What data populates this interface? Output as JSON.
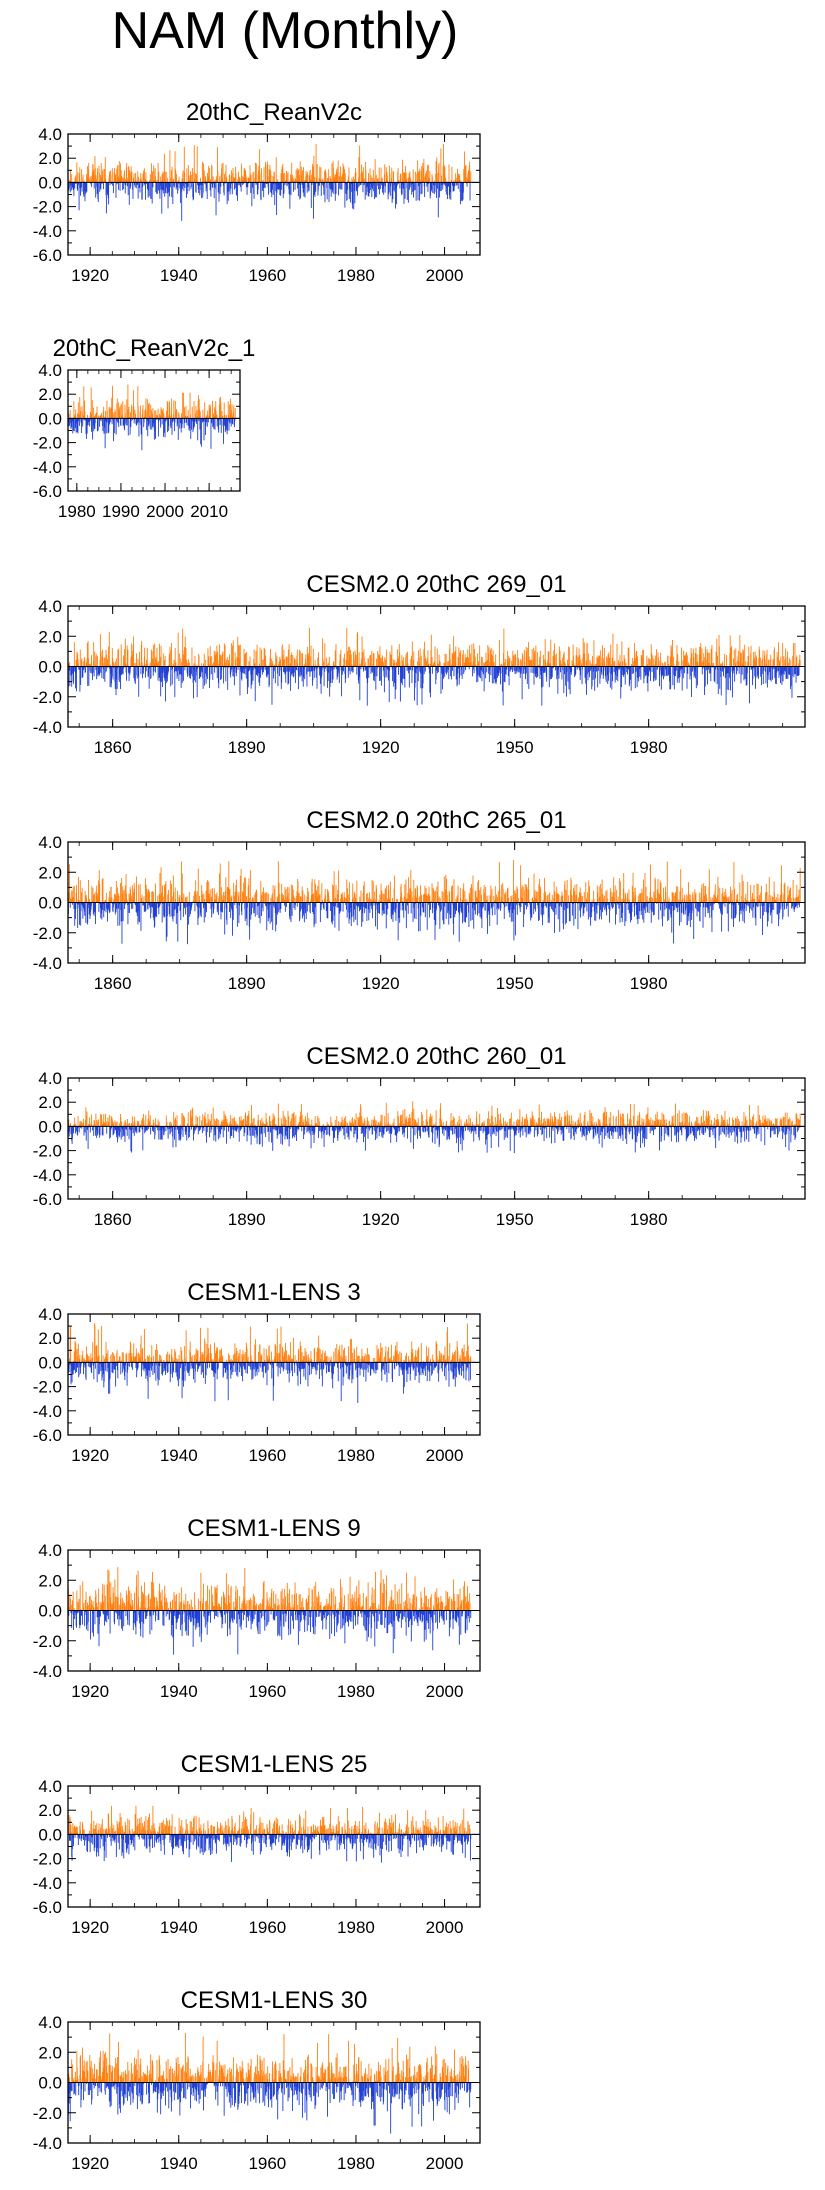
{
  "title": "NAM (Monthly)",
  "colors": {
    "positive": "#ff7f0e",
    "negative": "#1f3fd6",
    "background": "#ffffff"
  },
  "chart_data": [
    {
      "type": "bar",
      "title": "20thC_ReanV2c",
      "xlim": [
        1915,
        2008
      ],
      "ylim": [
        -6.0,
        4.0
      ],
      "x_ticks": [
        1920,
        1940,
        1960,
        1980,
        2000
      ],
      "y_ticks": [
        "4.0",
        "2.0",
        "0.0",
        "-2.0",
        "-4.0",
        "-6.0"
      ],
      "x_range": [
        1915,
        2006
      ],
      "amplitude": 1.2,
      "peak": 3.2,
      "seed": 11
    },
    {
      "type": "bar",
      "title": "20thC_ReanV2c_1",
      "xlim": [
        1978,
        2017
      ],
      "ylim": [
        -6.0,
        4.0
      ],
      "x_ticks": [
        1980,
        1990,
        2000,
        2010
      ],
      "y_ticks": [
        "4.0",
        "2.0",
        "0.0",
        "-2.0",
        "-4.0",
        "-6.0"
      ],
      "x_range": [
        1978,
        2016
      ],
      "amplitude": 1.2,
      "peak": 2.8,
      "seed": 23
    },
    {
      "type": "bar",
      "title": "CESM2.0 20thC 269_01",
      "xlim": [
        1850,
        2015
      ],
      "ylim": [
        -4.0,
        4.0
      ],
      "x_ticks": [
        1860,
        1890,
        1920,
        1950,
        1980
      ],
      "y_ticks": [
        "4.0",
        "2.0",
        "0.0",
        "-2.0",
        "-4.0"
      ],
      "x_range": [
        1850,
        2014
      ],
      "amplitude": 1.1,
      "peak": 2.6,
      "seed": 37
    },
    {
      "type": "bar",
      "title": "CESM2.0 20thC 265_01",
      "xlim": [
        1850,
        2015
      ],
      "ylim": [
        -4.0,
        4.0
      ],
      "x_ticks": [
        1860,
        1890,
        1920,
        1950,
        1980
      ],
      "y_ticks": [
        "4.0",
        "2.0",
        "0.0",
        "-2.0",
        "-4.0"
      ],
      "x_range": [
        1850,
        2014
      ],
      "amplitude": 1.1,
      "peak": 2.8,
      "seed": 41
    },
    {
      "type": "bar",
      "title": "CESM2.0 20thC 260_01",
      "xlim": [
        1850,
        2015
      ],
      "ylim": [
        -6.0,
        4.0
      ],
      "x_ticks": [
        1860,
        1890,
        1920,
        1950,
        1980
      ],
      "y_ticks": [
        "4.0",
        "2.0",
        "0.0",
        "-2.0",
        "-4.0",
        "-6.0"
      ],
      "x_range": [
        1850,
        2014
      ],
      "amplitude": 0.9,
      "peak": 2.2,
      "seed": 53
    },
    {
      "type": "bar",
      "title": "CESM1-LENS 3",
      "xlim": [
        1915,
        2008
      ],
      "ylim": [
        -6.0,
        4.0
      ],
      "x_ticks": [
        1920,
        1940,
        1960,
        1980,
        2000
      ],
      "y_ticks": [
        "4.0",
        "2.0",
        "0.0",
        "-2.0",
        "-4.0",
        "-6.0"
      ],
      "x_range": [
        1915,
        2006
      ],
      "amplitude": 1.2,
      "peak": 3.4,
      "seed": 67
    },
    {
      "type": "bar",
      "title": "CESM1-LENS 9",
      "xlim": [
        1915,
        2008
      ],
      "ylim": [
        -4.0,
        4.0
      ],
      "x_ticks": [
        1920,
        1940,
        1960,
        1980,
        2000
      ],
      "y_ticks": [
        "4.0",
        "2.0",
        "0.0",
        "-2.0",
        "-4.0"
      ],
      "x_range": [
        1915,
        2006
      ],
      "amplitude": 1.2,
      "peak": 3.0,
      "seed": 71
    },
    {
      "type": "bar",
      "title": "CESM1-LENS 25",
      "xlim": [
        1915,
        2008
      ],
      "ylim": [
        -6.0,
        4.0
      ],
      "x_ticks": [
        1920,
        1940,
        1960,
        1980,
        2000
      ],
      "y_ticks": [
        "4.0",
        "2.0",
        "0.0",
        "-2.0",
        "-4.0",
        "-6.0"
      ],
      "x_range": [
        1915,
        2006
      ],
      "amplitude": 1.1,
      "peak": 2.4,
      "seed": 83
    },
    {
      "type": "bar",
      "title": "CESM1-LENS 30",
      "xlim": [
        1915,
        2008
      ],
      "ylim": [
        -4.0,
        4.0
      ],
      "x_ticks": [
        1920,
        1940,
        1960,
        1980,
        2000
      ],
      "y_ticks": [
        "4.0",
        "2.0",
        "0.0",
        "-2.0",
        "-4.0"
      ],
      "x_range": [
        1915,
        2006
      ],
      "amplitude": 1.3,
      "peak": 3.4,
      "seed": 97
    }
  ]
}
